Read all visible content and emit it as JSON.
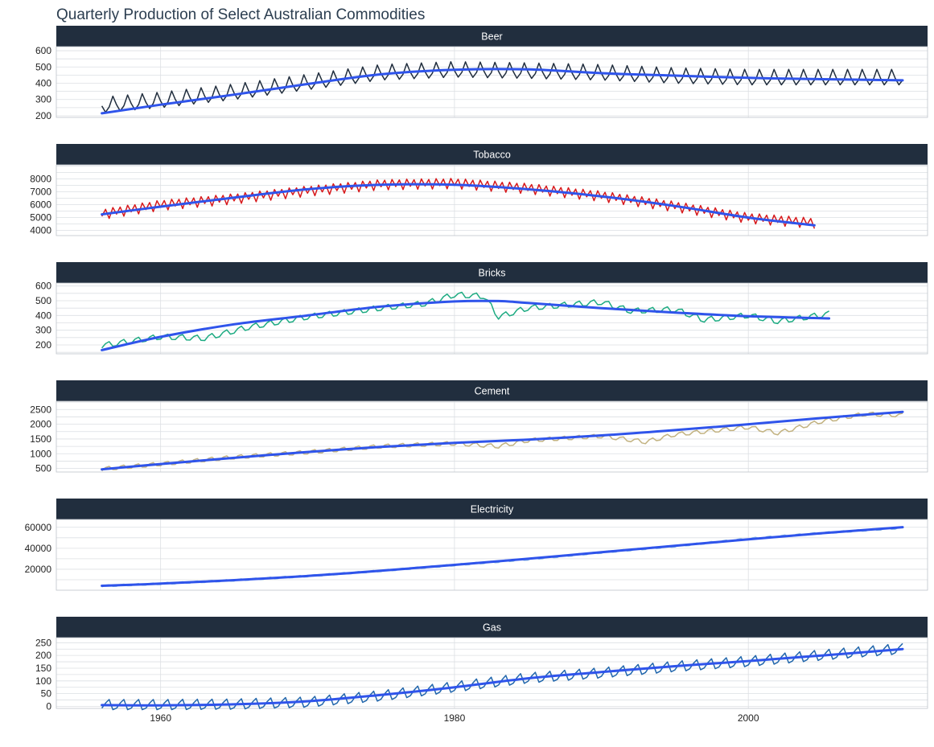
{
  "colors": {
    "strip": "#212e3e",
    "strip_text": "#ffffff",
    "grid": "#dcdfe3",
    "panel_border": "#bfc4ca",
    "smooth": "#2f54eb",
    "title": "#2c3e50"
  },
  "chart_data": {
    "type": "line",
    "title": "Quarterly Production of Select Australian Commodities",
    "xlabel": "",
    "ylabel": "",
    "x_ticks": [
      1960,
      1980,
      2000
    ],
    "x_tick_labels": [
      "1960",
      "1980",
      "2000"
    ],
    "xlim": [
      1952.9,
      2012.2
    ],
    "grid": true,
    "facets": [
      {
        "name": "Beer",
        "color": "#212e3e",
        "ylim": [
          190,
          625
        ],
        "y_ticks": [
          200,
          300,
          400,
          500,
          600
        ],
        "y_tick_labels": [
          "200",
          "300",
          "400",
          "500",
          "600"
        ],
        "start": 1956.0,
        "end": 2010.5,
        "anchors": [
          [
            1956,
            260
          ],
          [
            1960,
            290
          ],
          [
            1965,
            340
          ],
          [
            1970,
            400
          ],
          [
            1975,
            460
          ],
          [
            1980,
            478
          ],
          [
            1985,
            470
          ],
          [
            1990,
            460
          ],
          [
            1995,
            440
          ],
          [
            2000,
            430
          ],
          [
            2005,
            430
          ],
          [
            2010.5,
            430
          ]
        ],
        "season": [
          0,
          -40,
          -10,
          55
        ],
        "smooth": [
          [
            1956,
            215
          ],
          [
            1960,
            268
          ],
          [
            1965,
            330
          ],
          [
            1970,
            395
          ],
          [
            1975,
            455
          ],
          [
            1980,
            483
          ],
          [
            1985,
            485
          ],
          [
            1990,
            462
          ],
          [
            1995,
            447
          ],
          [
            2000,
            433
          ],
          [
            2005,
            425
          ],
          [
            2010.5,
            418
          ]
        ]
      },
      {
        "name": "Tobacco",
        "color": "#d7191c",
        "ylim": [
          3600,
          9100
        ],
        "y_ticks": [
          4000,
          5000,
          6000,
          7000,
          8000
        ],
        "y_tick_labels": [
          "4000",
          "5000",
          "6000",
          "7000",
          "8000"
        ],
        "start": 1956.0,
        "end": 2004.5,
        "anchors": [
          [
            1956,
            5300
          ],
          [
            1960,
            6000
          ],
          [
            1965,
            6500
          ],
          [
            1970,
            7100
          ],
          [
            1975,
            7600
          ],
          [
            1980,
            7700
          ],
          [
            1985,
            7300
          ],
          [
            1990,
            6700
          ],
          [
            1995,
            5900
          ],
          [
            2000,
            5000
          ],
          [
            2004.5,
            4600
          ]
        ],
        "season": [
          -200,
          300,
          -450,
          350
        ],
        "smooth": [
          [
            1956,
            5250
          ],
          [
            1960,
            5850
          ],
          [
            1965,
            6550
          ],
          [
            1970,
            7200
          ],
          [
            1975,
            7550
          ],
          [
            1980,
            7550
          ],
          [
            1985,
            7200
          ],
          [
            1990,
            6650
          ],
          [
            1995,
            5900
          ],
          [
            2000,
            5000
          ],
          [
            2004.5,
            4400
          ]
        ]
      },
      {
        "name": "Bricks",
        "color": "#1dab82",
        "ylim": [
          140,
          620
        ],
        "y_ticks": [
          200,
          300,
          400,
          500,
          600
        ],
        "y_tick_labels": [
          "200",
          "300",
          "400",
          "500",
          "600"
        ],
        "start": 1956.0,
        "end": 2005.5,
        "anchors": [
          [
            1956,
            195
          ],
          [
            1960,
            255
          ],
          [
            1963,
            245
          ],
          [
            1966,
            320
          ],
          [
            1970,
            390
          ],
          [
            1975,
            450
          ],
          [
            1978,
            480
          ],
          [
            1980,
            540
          ],
          [
            1982,
            530
          ],
          [
            1983,
            390
          ],
          [
            1985,
            450
          ],
          [
            1990,
            490
          ],
          [
            1992,
            430
          ],
          [
            1995,
            440
          ],
          [
            1997,
            370
          ],
          [
            2000,
            400
          ],
          [
            2002,
            360
          ],
          [
            2005.5,
            410
          ]
        ],
        "season": [
          -15,
          10,
          20,
          -15
        ],
        "smooth": [
          [
            1956,
            165
          ],
          [
            1960,
            255
          ],
          [
            1965,
            340
          ],
          [
            1970,
            400
          ],
          [
            1975,
            460
          ],
          [
            1980,
            495
          ],
          [
            1983,
            498
          ],
          [
            1985,
            485
          ],
          [
            1990,
            450
          ],
          [
            1995,
            420
          ],
          [
            2000,
            395
          ],
          [
            2005.5,
            380
          ]
        ]
      },
      {
        "name": "Cement",
        "color": "#c2b280",
        "ylim": [
          380,
          2780
        ],
        "y_ticks": [
          500,
          1000,
          1500,
          2000,
          2500
        ],
        "y_tick_labels": [
          "500",
          "1000",
          "1500",
          "2000",
          "2500"
        ],
        "start": 1956.0,
        "end": 2010.5,
        "anchors": [
          [
            1956,
            480
          ],
          [
            1960,
            650
          ],
          [
            1965,
            880
          ],
          [
            1970,
            1050
          ],
          [
            1975,
            1250
          ],
          [
            1980,
            1350
          ],
          [
            1983,
            1250
          ],
          [
            1985,
            1450
          ],
          [
            1990,
            1600
          ],
          [
            1993,
            1400
          ],
          [
            1995,
            1650
          ],
          [
            2000,
            1900
          ],
          [
            2002,
            1700
          ],
          [
            2005,
            2100
          ],
          [
            2008,
            2350
          ],
          [
            2010.5,
            2300
          ]
        ],
        "season": [
          -60,
          40,
          70,
          -50
        ],
        "smooth": [
          [
            1956,
            470
          ],
          [
            1960,
            650
          ],
          [
            1965,
            860
          ],
          [
            1970,
            1060
          ],
          [
            1975,
            1230
          ],
          [
            1980,
            1370
          ],
          [
            1985,
            1480
          ],
          [
            1990,
            1620
          ],
          [
            1995,
            1800
          ],
          [
            2000,
            2000
          ],
          [
            2005,
            2210
          ],
          [
            2010.5,
            2420
          ]
        ]
      },
      {
        "name": "Electricity",
        "color": "#8dbbe0",
        "ylim": [
          0,
          67500
        ],
        "y_ticks": [
          20000,
          40000,
          60000
        ],
        "y_tick_labels": [
          "20000",
          "40000",
          "60000"
        ],
        "start": 1956.0,
        "end": 2010.5,
        "anchors": [
          [
            1956,
            4000
          ],
          [
            1960,
            6200
          ],
          [
            1965,
            9500
          ],
          [
            1970,
            13500
          ],
          [
            1975,
            18500
          ],
          [
            1980,
            24000
          ],
          [
            1985,
            29500
          ],
          [
            1990,
            36000
          ],
          [
            1995,
            42000
          ],
          [
            2000,
            49000
          ],
          [
            2005,
            54500
          ],
          [
            2010.5,
            59500
          ]
        ],
        "season": [
          -800,
          600,
          900,
          -700
        ],
        "smooth": [
          [
            1956,
            4200
          ],
          [
            1960,
            6300
          ],
          [
            1965,
            9600
          ],
          [
            1970,
            13600
          ],
          [
            1975,
            18600
          ],
          [
            1980,
            24200
          ],
          [
            1985,
            30000
          ],
          [
            1990,
            36200
          ],
          [
            1995,
            42400
          ],
          [
            2000,
            48500
          ],
          [
            2005,
            54400
          ],
          [
            2010.5,
            60100
          ]
        ]
      },
      {
        "name": "Gas",
        "color": "#2166ac",
        "ylim": [
          -8,
          270
        ],
        "y_ticks": [
          0,
          50,
          100,
          150,
          200,
          250
        ],
        "y_tick_labels": [
          "0",
          "50",
          "100",
          "150",
          "200",
          "250"
        ],
        "start": 1956.0,
        "end": 2010.5,
        "anchors": [
          [
            1956,
            5
          ],
          [
            1960,
            5
          ],
          [
            1965,
            7
          ],
          [
            1970,
            15
          ],
          [
            1975,
            40
          ],
          [
            1980,
            75
          ],
          [
            1985,
            110
          ],
          [
            1990,
            130
          ],
          [
            1995,
            155
          ],
          [
            2000,
            175
          ],
          [
            2005,
            200
          ],
          [
            2010.5,
            225
          ]
        ],
        "season": [
          -12,
          8,
          22,
          -18
        ],
        "smooth": [
          [
            1956,
            5
          ],
          [
            1960,
            4
          ],
          [
            1965,
            8
          ],
          [
            1970,
            20
          ],
          [
            1975,
            45
          ],
          [
            1980,
            75
          ],
          [
            1985,
            110
          ],
          [
            1990,
            135
          ],
          [
            1995,
            158
          ],
          [
            2000,
            178
          ],
          [
            2005,
            200
          ],
          [
            2010.5,
            225
          ]
        ]
      }
    ]
  }
}
